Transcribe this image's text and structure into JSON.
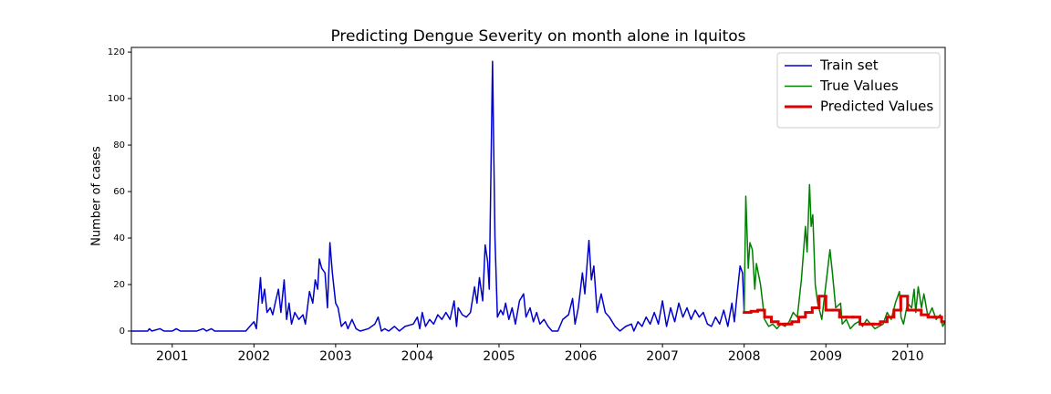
{
  "chart_data": {
    "type": "line",
    "title": "Predicting Dengue Severity on month alone in Iquitos",
    "y_label": "Number of cases",
    "xlim": [
      2000.5,
      2010.46
    ],
    "ylim": [
      -5.5,
      122
    ],
    "xticks": [
      2001,
      2002,
      2003,
      2004,
      2005,
      2006,
      2007,
      2008,
      2009,
      2010
    ],
    "yticks": [
      0,
      20,
      40,
      60,
      80,
      100,
      120
    ],
    "legend": "upper right",
    "series": [
      {
        "name": "Train set",
        "color": "#0000cc",
        "width": 1.5,
        "x": [
          2000.5,
          2000.7,
          2000.72,
          2000.75,
          2000.85,
          2000.9,
          2001.0,
          2001.05,
          2001.1,
          2001.3,
          2001.38,
          2001.42,
          2001.48,
          2001.52,
          2001.9,
          2001.95,
          2002.0,
          2002.03,
          2002.05,
          2002.08,
          2002.1,
          2002.13,
          2002.16,
          2002.2,
          2002.23,
          2002.26,
          2002.3,
          2002.33,
          2002.37,
          2002.4,
          2002.43,
          2002.46,
          2002.5,
          2002.55,
          2002.6,
          2002.63,
          2002.68,
          2002.72,
          2002.75,
          2002.78,
          2002.8,
          2002.83,
          2002.87,
          2002.9,
          2002.93,
          2002.96,
          2003.0,
          2003.03,
          2003.07,
          2003.12,
          2003.15,
          2003.2,
          2003.25,
          2003.3,
          2003.4,
          2003.48,
          2003.52,
          2003.56,
          2003.6,
          2003.65,
          2003.72,
          2003.78,
          2003.85,
          2003.95,
          2004.0,
          2004.03,
          2004.06,
          2004.1,
          2004.15,
          2004.2,
          2004.25,
          2004.3,
          2004.35,
          2004.4,
          2004.45,
          2004.48,
          2004.5,
          2004.55,
          2004.6,
          2004.65,
          2004.7,
          2004.73,
          2004.76,
          2004.8,
          2004.83,
          2004.86,
          2004.88,
          2004.92,
          2004.95,
          2004.98,
          2005.02,
          2005.05,
          2005.08,
          2005.12,
          2005.16,
          2005.2,
          2005.25,
          2005.3,
          2005.33,
          2005.38,
          2005.42,
          2005.46,
          2005.5,
          2005.55,
          2005.6,
          2005.65,
          2005.72,
          2005.78,
          2005.85,
          2005.9,
          2005.93,
          2005.97,
          2006.02,
          2006.05,
          2006.1,
          2006.13,
          2006.16,
          2006.2,
          2006.25,
          2006.3,
          2006.35,
          2006.42,
          2006.48,
          2006.55,
          2006.62,
          2006.65,
          2006.7,
          2006.75,
          2006.8,
          2006.85,
          2006.9,
          2006.95,
          2007.0,
          2007.05,
          2007.1,
          2007.15,
          2007.2,
          2007.25,
          2007.3,
          2007.35,
          2007.4,
          2007.45,
          2007.5,
          2007.55,
          2007.6,
          2007.65,
          2007.7,
          2007.75,
          2007.8,
          2007.85,
          2007.88,
          2007.92,
          2007.95,
          2007.98,
          2008.0
        ],
        "values": [
          0,
          0,
          1,
          0,
          1,
          0,
          0,
          1,
          0,
          0,
          1,
          0,
          1,
          0,
          0,
          2,
          4,
          1,
          10,
          23,
          12,
          18,
          8,
          10,
          7,
          12,
          18,
          8,
          22,
          5,
          12,
          3,
          8,
          5,
          7,
          3,
          17,
          12,
          22,
          18,
          31,
          27,
          25,
          10,
          38,
          25,
          12,
          10,
          2,
          4,
          1,
          5,
          1,
          0,
          1,
          3,
          6,
          0,
          1,
          0,
          2,
          0,
          2,
          3,
          6,
          1,
          8,
          2,
          5,
          3,
          7,
          5,
          8,
          5,
          13,
          2,
          10,
          7,
          6,
          8,
          19,
          12,
          23,
          13,
          37,
          30,
          18,
          116,
          40,
          6,
          9,
          7,
          12,
          5,
          10,
          3,
          13,
          16,
          6,
          10,
          4,
          8,
          3,
          5,
          2,
          0,
          0,
          5,
          7,
          14,
          3,
          10,
          25,
          16,
          39,
          22,
          28,
          8,
          16,
          8,
          6,
          2,
          0,
          2,
          3,
          0,
          4,
          2,
          6,
          3,
          8,
          3,
          13,
          2,
          10,
          4,
          12,
          6,
          10,
          5,
          9,
          6,
          8,
          3,
          2,
          6,
          3,
          9,
          2,
          12,
          4,
          18,
          28,
          25,
          8
        ]
      },
      {
        "name": "True Values",
        "color": "#008000",
        "width": 1.5,
        "x": [
          2008.0,
          2008.02,
          2008.05,
          2008.07,
          2008.1,
          2008.13,
          2008.15,
          2008.2,
          2008.25,
          2008.3,
          2008.35,
          2008.4,
          2008.45,
          2008.5,
          2008.55,
          2008.6,
          2008.65,
          2008.7,
          2008.75,
          2008.77,
          2008.8,
          2008.82,
          2008.84,
          2008.87,
          2008.9,
          2008.95,
          2009.0,
          2009.05,
          2009.08,
          2009.12,
          2009.18,
          2009.2,
          2009.25,
          2009.3,
          2009.35,
          2009.4,
          2009.45,
          2009.5,
          2009.55,
          2009.6,
          2009.65,
          2009.7,
          2009.75,
          2009.8,
          2009.85,
          2009.9,
          2009.92,
          2009.95,
          2010.0,
          2010.05,
          2010.08,
          2010.1,
          2010.13,
          2010.17,
          2010.2,
          2010.25,
          2010.3,
          2010.35,
          2010.4,
          2010.43,
          2010.46
        ],
        "values": [
          8,
          58,
          27,
          38,
          35,
          18,
          29,
          20,
          5,
          2,
          3,
          1,
          3,
          2,
          4,
          8,
          6,
          22,
          45,
          34,
          63,
          45,
          50,
          20,
          12,
          5,
          20,
          35,
          25,
          10,
          12,
          3,
          5,
          1,
          3,
          4,
          2,
          5,
          3,
          1,
          2,
          3,
          8,
          5,
          12,
          17,
          6,
          3,
          12,
          10,
          18,
          8,
          19,
          10,
          16,
          6,
          10,
          5,
          7,
          2,
          4
        ]
      },
      {
        "name": "Predicted Values",
        "color": "#dd0000",
        "width": 3,
        "step": "post",
        "x": [
          2008.0,
          2008.083,
          2008.167,
          2008.25,
          2008.333,
          2008.417,
          2008.5,
          2008.583,
          2008.667,
          2008.75,
          2008.833,
          2008.917,
          2009.0,
          2009.083,
          2009.167,
          2009.25,
          2009.333,
          2009.417,
          2009.5,
          2009.583,
          2009.667,
          2009.75,
          2009.833,
          2009.917,
          2010.0,
          2010.083,
          2010.167,
          2010.25,
          2010.333,
          2010.417
        ],
        "values": [
          8,
          8.5,
          9,
          6,
          4,
          3,
          3,
          4,
          6,
          8,
          10,
          15,
          9,
          9,
          6,
          6,
          6,
          3,
          3,
          3,
          4,
          6,
          9,
          15,
          9,
          9,
          7,
          6,
          6,
          4
        ]
      }
    ]
  }
}
